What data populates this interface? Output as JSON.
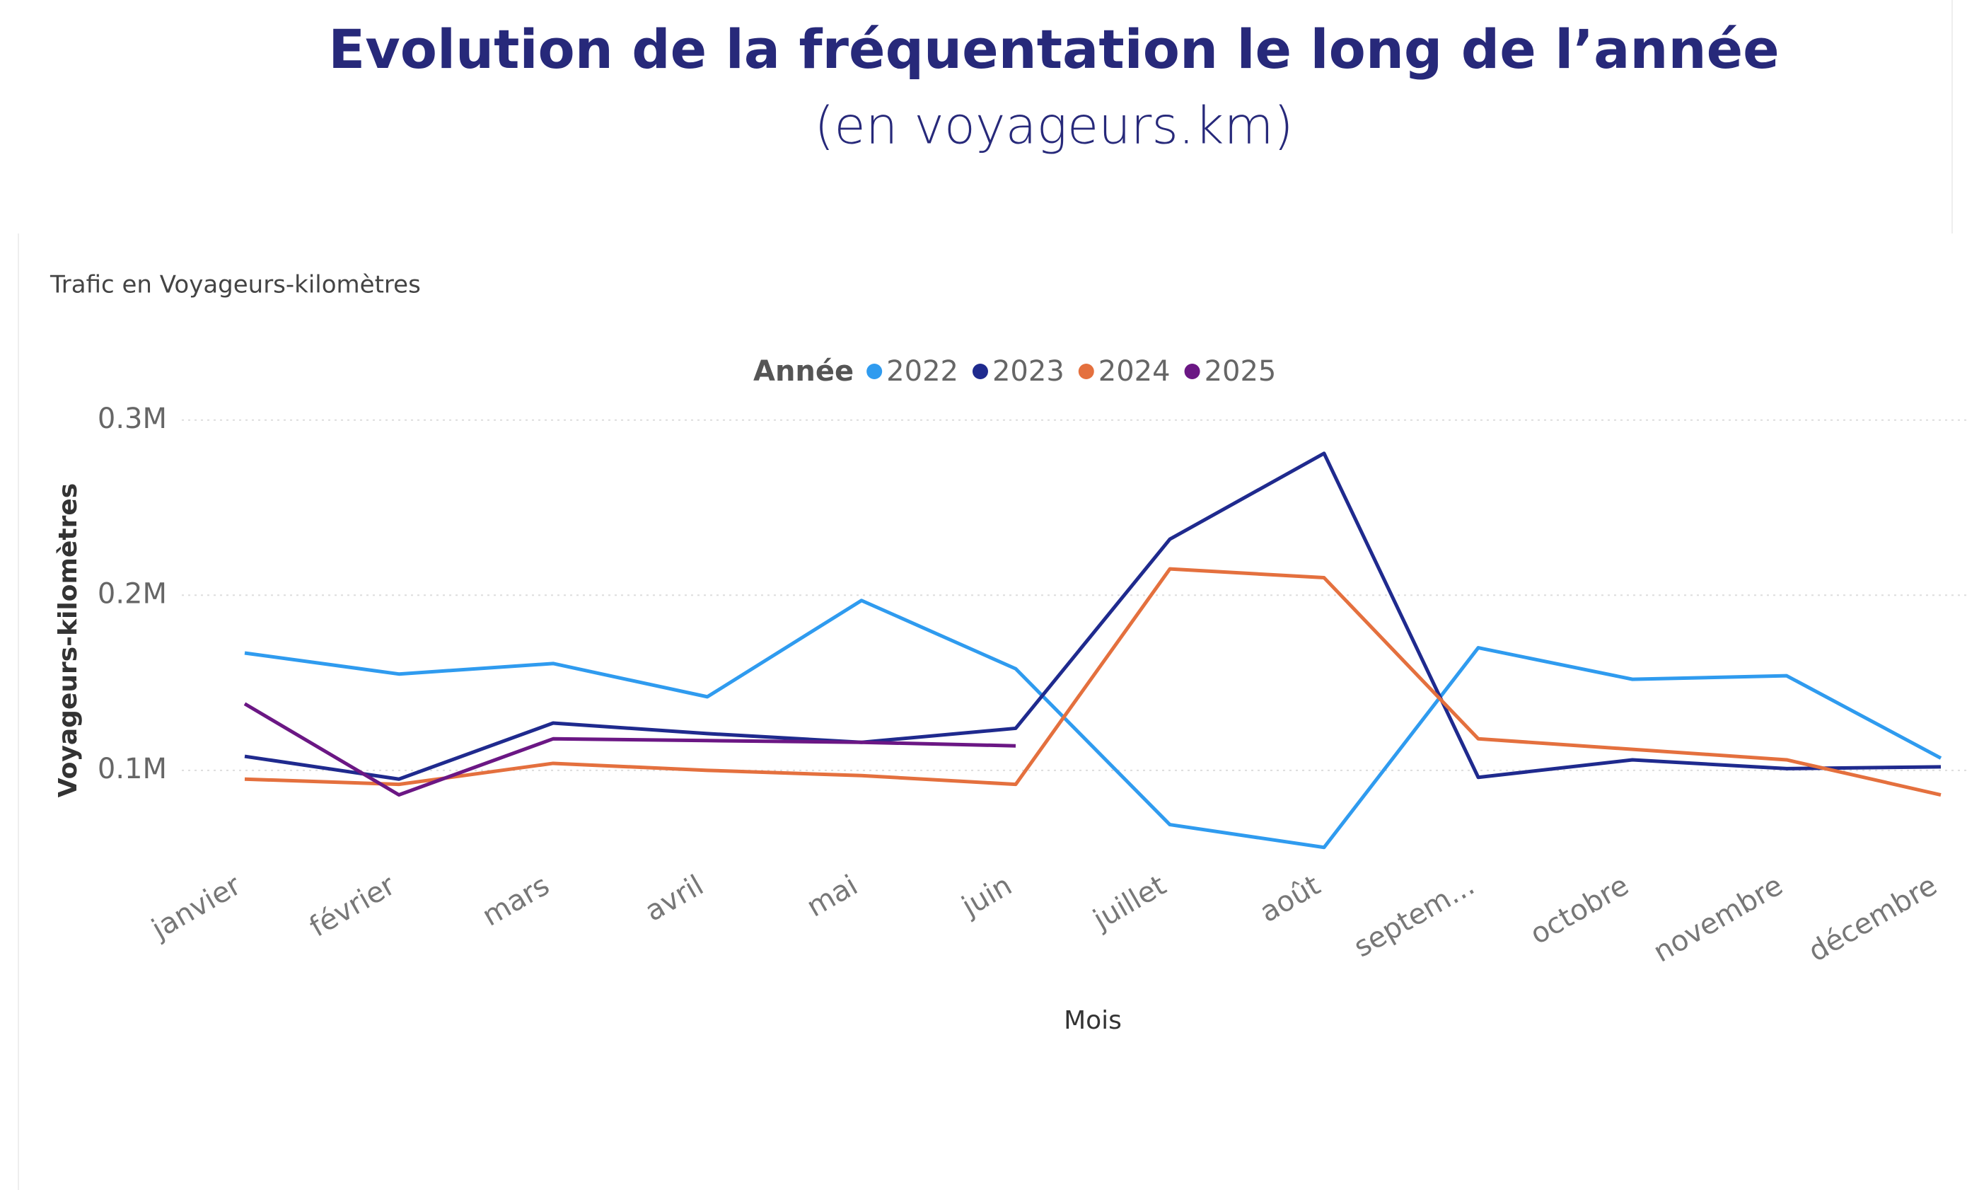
{
  "chart_data": {
    "type": "line",
    "title": "Evolution de la fréquentation le long de l’année",
    "subtitle": "(en voyageurs.km)",
    "chart_heading": "Trafic en Voyageurs-kilomètres",
    "legend_title": "Année",
    "y_label": "Voyageurs-kilomètres",
    "x_label": "Mois",
    "categories": [
      "janvier",
      "février",
      "mars",
      "avril",
      "mai",
      "juin",
      "juillet",
      "août",
      "septem...",
      "octobre",
      "novembre",
      "décembre"
    ],
    "series": [
      {
        "name": "2022",
        "color": "#2f9bef",
        "values": [
          167000,
          155000,
          161000,
          142000,
          197000,
          158000,
          69000,
          56000,
          170000,
          152000,
          154000,
          107000
        ]
      },
      {
        "name": "2023",
        "color": "#1f2a8e",
        "values": [
          108000,
          95000,
          127000,
          121000,
          116000,
          124000,
          232000,
          281000,
          96000,
          106000,
          101000,
          102000
        ]
      },
      {
        "name": "2024",
        "color": "#e4703e",
        "values": [
          95000,
          92000,
          104000,
          100000,
          97000,
          92000,
          215000,
          210000,
          118000,
          112000,
          106000,
          86000
        ]
      },
      {
        "name": "2025",
        "color": "#6b1784",
        "values": [
          138000,
          86000,
          118000,
          117000,
          116000,
          114000,
          null,
          null,
          null,
          null,
          null,
          null
        ]
      }
    ],
    "ylim": [
      45000,
      310000
    ],
    "yticks": [
      {
        "value": 100000,
        "label": "0.1M"
      },
      {
        "value": 200000,
        "label": "0.2M"
      },
      {
        "value": 300000,
        "label": "0.3M"
      }
    ],
    "grid": true
  }
}
